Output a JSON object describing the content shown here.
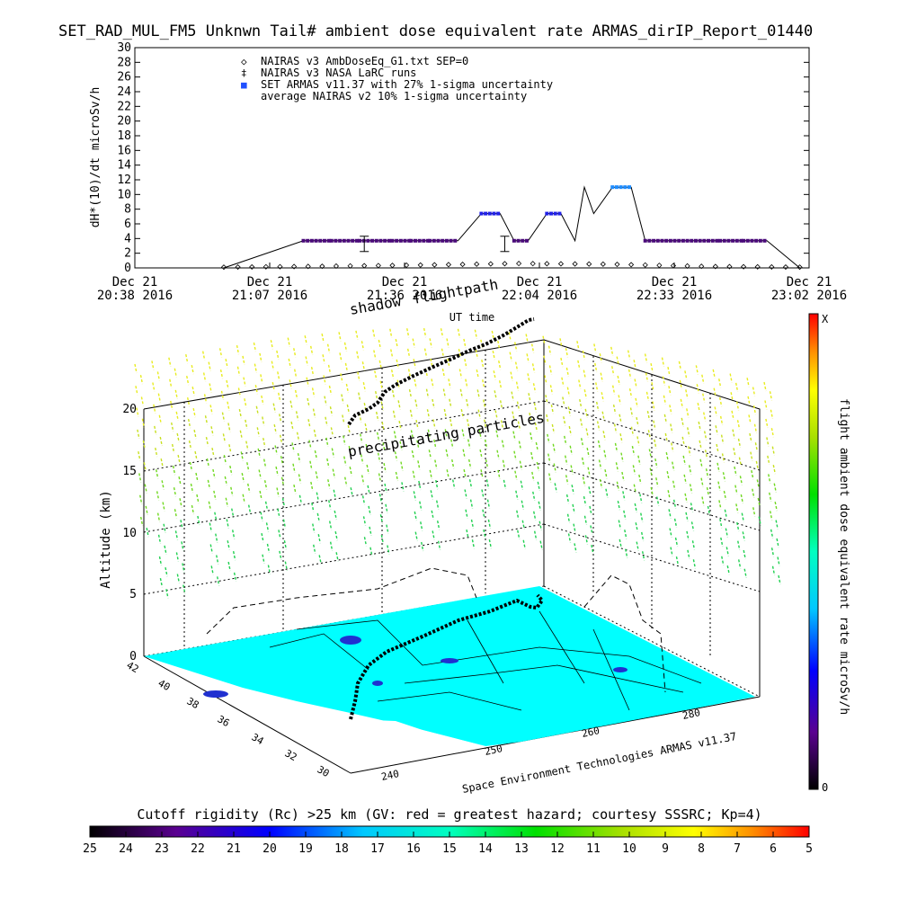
{
  "title": "SET_RAD_MUL_FM5 Unknwn Tail#  ambient dose equivalent rate ARMAS_dirIP_Report_01440",
  "top_chart": {
    "ylabel": "dH*(10)/dt microSv/h",
    "xlabel": "UT time",
    "y_ticks": [
      "0",
      "2",
      "4",
      "6",
      "8",
      "10",
      "12",
      "14",
      "16",
      "18",
      "20",
      "22",
      "24",
      "26",
      "28",
      "30"
    ],
    "x_ticks": [
      {
        "date": "Dec 21",
        "time": "20:38 2016"
      },
      {
        "date": "Dec 21",
        "time": "21:07 2016"
      },
      {
        "date": "Dec 21",
        "time": "21:36 2016"
      },
      {
        "date": "Dec 21",
        "time": "22:04 2016"
      },
      {
        "date": "Dec 21",
        "time": "22:33 2016"
      },
      {
        "date": "Dec 21",
        "time": "23:02 2016"
      }
    ],
    "legend": [
      {
        "symbol": "◇",
        "text": "NAIRAS v3 AmbDoseEq_G1.txt SEP=0"
      },
      {
        "symbol": "‡",
        "text": "NAIRAS v3 NASA LaRC runs"
      },
      {
        "symbol": "■",
        "text": "SET ARMAS v11.37 with 27% 1-sigma uncertainty"
      },
      {
        "symbol": "",
        "text": "average NAIRAS v2 10% 1-sigma uncertainty"
      }
    ]
  },
  "chart_data": [
    {
      "type": "line",
      "title": "SET_RAD_MUL_FM5 Unknwn Tail#  ambient dose equivalent rate ARMAS_dirIP_Report_01440",
      "xlabel": "UT time",
      "ylabel": "dH*(10)/dt microSv/h",
      "xlim": [
        "20:38",
        "23:02"
      ],
      "ylim": [
        0,
        30
      ],
      "grid": false,
      "legend_position": "top-left",
      "series": [
        {
          "name": "SET ARMAS v11.37 with 27% 1-sigma uncertainty",
          "color": "#2050ff",
          "x": [
            "21:14",
            "21:20",
            "21:26",
            "21:33",
            "21:37",
            "21:41",
            "21:47",
            "21:52",
            "21:56",
            "21:59",
            "22:02",
            "22:06",
            "22:09",
            "22:12",
            "22:14",
            "22:16",
            "22:20",
            "22:24",
            "22:27",
            "22:43",
            "22:48",
            "22:53"
          ],
          "y": [
            3.7,
            3.7,
            3.7,
            3.7,
            3.7,
            3.7,
            3.7,
            7.4,
            7.4,
            3.7,
            3.7,
            7.4,
            7.4,
            3.7,
            11,
            7.4,
            11,
            11,
            3.7,
            3.7,
            3.7,
            3.7
          ]
        },
        {
          "name": "NAIRAS v3 AmbDoseEq_G1.txt SEP=0",
          "color": "#000000",
          "x": [
            "20:57",
            "21:15",
            "21:40",
            "22:00",
            "22:20",
            "22:40",
            "23:00"
          ],
          "y": [
            0.1,
            0.2,
            0.4,
            0.6,
            0.5,
            0.2,
            0.1
          ]
        },
        {
          "name": "NAIRAS v3 NASA LaRC runs",
          "color": "#000000",
          "x": [
            "21:27",
            "21:57"
          ],
          "y": [
            3.7,
            3.7
          ]
        }
      ]
    },
    {
      "type": "scatter",
      "ylabel": "Altitude (km)",
      "z_ticks": [
        "0",
        "5",
        "10",
        "15",
        "20"
      ],
      "lat_ticks": [
        "42",
        "40",
        "38",
        "36",
        "34",
        "32",
        "30"
      ],
      "lon_ticks": [
        "240",
        "250",
        "260",
        "280"
      ]
    },
    {
      "type": "heatmap",
      "title": "Cutoff rigidity (Rc) >25 km (GV: red = greatest hazard; courtesy SSSRC; Kp=4)",
      "ticks": [
        "25",
        "24",
        "23",
        "22",
        "21",
        "20",
        "19",
        "18",
        "17",
        "16",
        "15",
        "14",
        "13",
        "12",
        "11",
        "10",
        "9",
        "8",
        "7",
        "6",
        "5"
      ]
    }
  ],
  "scene": {
    "label_shadow": "shadow",
    "label_flightpath": "flightpath",
    "label_particles": "precipitating particles",
    "credit": "Space Environment Technologies ARMAS v11.37",
    "map_color": "#00ffff"
  },
  "colorbar_right": {
    "label": "flight ambient dose equivalent rate microSv/h",
    "top": "X",
    "bottom": "0"
  }
}
